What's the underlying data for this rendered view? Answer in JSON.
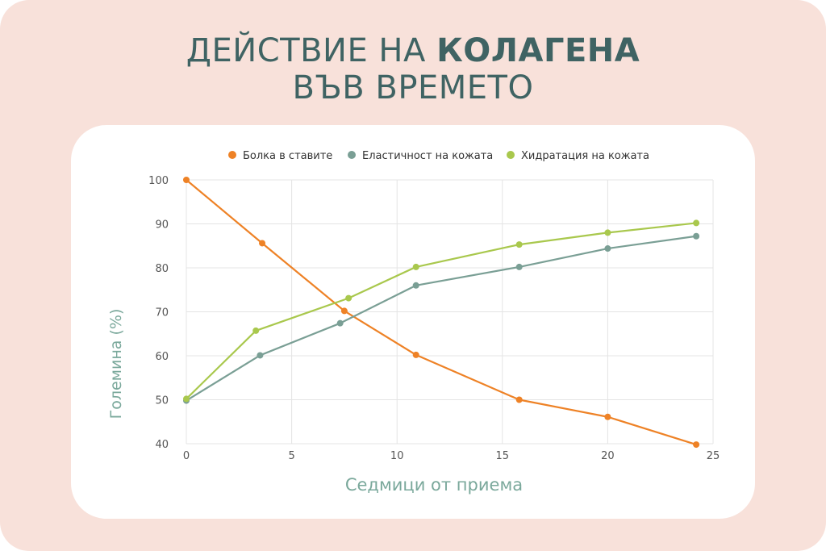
{
  "header": {
    "title_part1": "ДЕЙСТВИЕ НА ",
    "title_bold": "КОЛАГЕНА",
    "title_line2": "ВЪВ ВРЕМЕТО"
  },
  "colors": {
    "background": "#f8e1da",
    "title": "#3f6363",
    "axis_label": "#7aa89b",
    "series_orange": "#ee8226",
    "series_teal": "#7a9f95",
    "series_green": "#a9c84d"
  },
  "chart_data": {
    "type": "line",
    "xlabel": "Седмици от приема",
    "ylabel": "Големина (%)",
    "xlim": [
      0,
      25
    ],
    "ylim": [
      40,
      100
    ],
    "xticks": [
      0,
      5,
      10,
      15,
      20,
      25
    ],
    "yticks": [
      40,
      50,
      60,
      70,
      80,
      90,
      100
    ],
    "grid": true,
    "legend_position": "top",
    "series": [
      {
        "name": "Болка в ставите",
        "color": "#ee8226",
        "x": [
          0,
          3.6,
          7.5,
          10.9,
          15.8,
          20,
          24.2
        ],
        "y": [
          100,
          85.6,
          70.2,
          60.2,
          50,
          46.1,
          39.8
        ]
      },
      {
        "name": "Еластичност на кожата",
        "color": "#7a9f95",
        "x": [
          0,
          3.5,
          7.3,
          10.9,
          15.8,
          20,
          24.2
        ],
        "y": [
          49.8,
          60.1,
          67.4,
          76,
          80.2,
          84.4,
          87.2
        ]
      },
      {
        "name": "Хидратация на кожата",
        "color": "#a9c84d",
        "x": [
          0,
          3.3,
          7.7,
          10.9,
          15.8,
          20,
          24.2
        ],
        "y": [
          50.2,
          65.7,
          73.1,
          80.2,
          85.3,
          88,
          90.2
        ]
      }
    ]
  }
}
